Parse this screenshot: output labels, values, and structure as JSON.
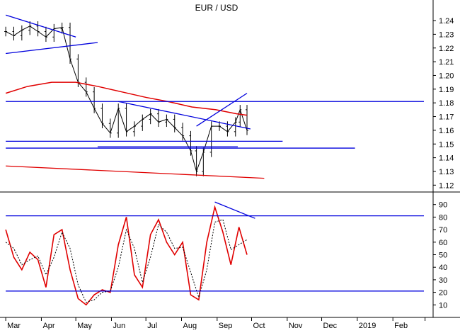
{
  "chart_data": {
    "type": "line",
    "title": "EUR / USD",
    "x_months": [
      "Mar",
      "Apr",
      "May",
      "Jun",
      "Jul",
      "Aug",
      "Sep",
      "Oct",
      "Nov",
      "Dec",
      "2019",
      "Feb"
    ],
    "colors": {
      "price": "#000000",
      "moving_average": "#e00000",
      "trendline": "#0000dd",
      "oscillator": "#e00000",
      "signal": "#000000",
      "grid_ticks": "#000000"
    },
    "panels": [
      {
        "name": "price",
        "y_ticks": [
          "1.12",
          "1.13",
          "1.14",
          "1.15",
          "1.16",
          "1.17",
          "1.18",
          "1.19",
          "1.20",
          "1.21",
          "1.22",
          "1.23",
          "1.24"
        ],
        "ylim": [
          1.115,
          1.255
        ],
        "series": [
          {
            "style": "ohlc",
            "x": [
              "2018-03-01",
              "2018-03-08",
              "2018-03-15",
              "2018-03-22",
              "2018-03-29",
              "2018-04-05",
              "2018-04-12",
              "2018-04-19",
              "2018-04-26",
              "2018-05-03",
              "2018-05-10",
              "2018-05-17",
              "2018-05-24",
              "2018-05-31",
              "2018-06-07",
              "2018-06-14",
              "2018-06-21",
              "2018-06-28",
              "2018-07-05",
              "2018-07-12",
              "2018-07-19",
              "2018-07-26",
              "2018-08-02",
              "2018-08-09",
              "2018-08-14",
              "2018-08-20",
              "2018-08-27",
              "2018-09-03",
              "2018-09-10",
              "2018-09-17",
              "2018-09-21",
              "2018-09-27"
            ],
            "values": [
              1.232,
              1.229,
              1.233,
              1.236,
              1.232,
              1.228,
              1.234,
              1.235,
              1.212,
              1.195,
              1.188,
              1.176,
              1.165,
              1.158,
              1.176,
              1.159,
              1.163,
              1.168,
              1.172,
              1.166,
              1.168,
              1.162,
              1.156,
              1.145,
              1.13,
              1.144,
              1.163,
              1.163,
              1.159,
              1.166,
              1.175,
              1.16
            ]
          },
          {
            "style": "moving_average",
            "x": [
              "2018-03-01",
              "2018-03-20",
              "2018-04-10",
              "2018-05-01",
              "2018-05-20",
              "2018-06-10",
              "2018-07-01",
              "2018-07-20",
              "2018-08-10",
              "2018-08-31",
              "2018-09-18",
              "2018-09-27"
            ],
            "values": [
              1.187,
              1.192,
              1.195,
              1.195,
              1.192,
              1.188,
              1.184,
              1.181,
              1.177,
              1.175,
              1.172,
              1.171
            ]
          }
        ],
        "trendlines": [
          {
            "from": [
              "2018-03-01",
              1.244
            ],
            "to": [
              "2018-05-01",
              1.228
            ]
          },
          {
            "from": [
              "2018-03-01",
              1.216
            ],
            "to": [
              "2018-05-20",
              1.224
            ]
          },
          {
            "from": [
              "2018-06-07",
              1.181
            ],
            "to": [
              "2018-09-30",
              1.161
            ]
          },
          {
            "from": [
              "2018-08-14",
              1.163
            ],
            "to": [
              "2018-09-27",
              1.187
            ]
          },
          {
            "from": [
              "2018-03-01",
              1.181
            ],
            "to": [
              "2019-02-28",
              1.181
            ]
          },
          {
            "from": [
              "2018-03-01",
              1.152
            ],
            "to": [
              "2018-10-28",
              1.152
            ]
          },
          {
            "from": [
              "2018-03-01",
              1.147
            ],
            "to": [
              "2018-12-30",
              1.147
            ]
          },
          {
            "from": [
              "2018-05-20",
              1.148
            ],
            "to": [
              "2018-09-19",
              1.148
            ]
          },
          {
            "from": [
              "2018-03-01",
              1.134
            ],
            "to": [
              "2018-10-12",
              1.125
            ],
            "color": "#e00000"
          }
        ]
      },
      {
        "name": "oscillator",
        "y_ticks": [
          "10",
          "20",
          "30",
          "40",
          "50",
          "60",
          "70",
          "80",
          "90"
        ],
        "ylim": [
          0,
          100
        ],
        "series": [
          {
            "style": "oscillator",
            "x": [
              "2018-03-01",
              "2018-03-08",
              "2018-03-15",
              "2018-03-22",
              "2018-03-29",
              "2018-04-05",
              "2018-04-12",
              "2018-04-19",
              "2018-04-26",
              "2018-05-03",
              "2018-05-10",
              "2018-05-17",
              "2018-05-24",
              "2018-05-31",
              "2018-06-07",
              "2018-06-14",
              "2018-06-21",
              "2018-06-28",
              "2018-07-05",
              "2018-07-12",
              "2018-07-19",
              "2018-07-26",
              "2018-08-02",
              "2018-08-09",
              "2018-08-16",
              "2018-08-23",
              "2018-08-30",
              "2018-09-06",
              "2018-09-13",
              "2018-09-20",
              "2018-09-27"
            ],
            "values": [
              70,
              48,
              38,
              52,
              46,
              24,
              66,
              70,
              38,
              15,
              10,
              18,
              22,
              20,
              58,
              80,
              34,
              24,
              66,
              78,
              60,
              50,
              60,
              18,
              14,
              60,
              88,
              68,
              42,
              72,
              50
            ]
          },
          {
            "style": "signal",
            "x": [
              "2018-03-01",
              "2018-03-08",
              "2018-03-15",
              "2018-03-22",
              "2018-03-29",
              "2018-04-05",
              "2018-04-12",
              "2018-04-19",
              "2018-04-26",
              "2018-05-03",
              "2018-05-10",
              "2018-05-17",
              "2018-05-24",
              "2018-05-31",
              "2018-06-07",
              "2018-06-14",
              "2018-06-21",
              "2018-06-28",
              "2018-07-05",
              "2018-07-12",
              "2018-07-19",
              "2018-07-26",
              "2018-08-02",
              "2018-08-09",
              "2018-08-16",
              "2018-08-23",
              "2018-08-30",
              "2018-09-06",
              "2018-09-13",
              "2018-09-20",
              "2018-09-27"
            ],
            "values": [
              60,
              55,
              42,
              46,
              49,
              34,
              48,
              68,
              55,
              26,
              12,
              14,
              20,
              21,
              40,
              70,
              55,
              28,
              48,
              74,
              68,
              55,
              56,
              36,
              16,
              38,
              76,
              78,
              54,
              58,
              62
            ]
          }
        ],
        "trendlines": [
          {
            "from": [
              "2018-03-01",
              81
            ],
            "to": [
              "2019-02-28",
              81
            ]
          },
          {
            "from": [
              "2018-03-01",
              21
            ],
            "to": [
              "2019-02-28",
              21
            ]
          },
          {
            "from": [
              "2018-08-30",
              92
            ],
            "to": [
              "2018-10-04",
              79
            ]
          }
        ]
      }
    ]
  }
}
